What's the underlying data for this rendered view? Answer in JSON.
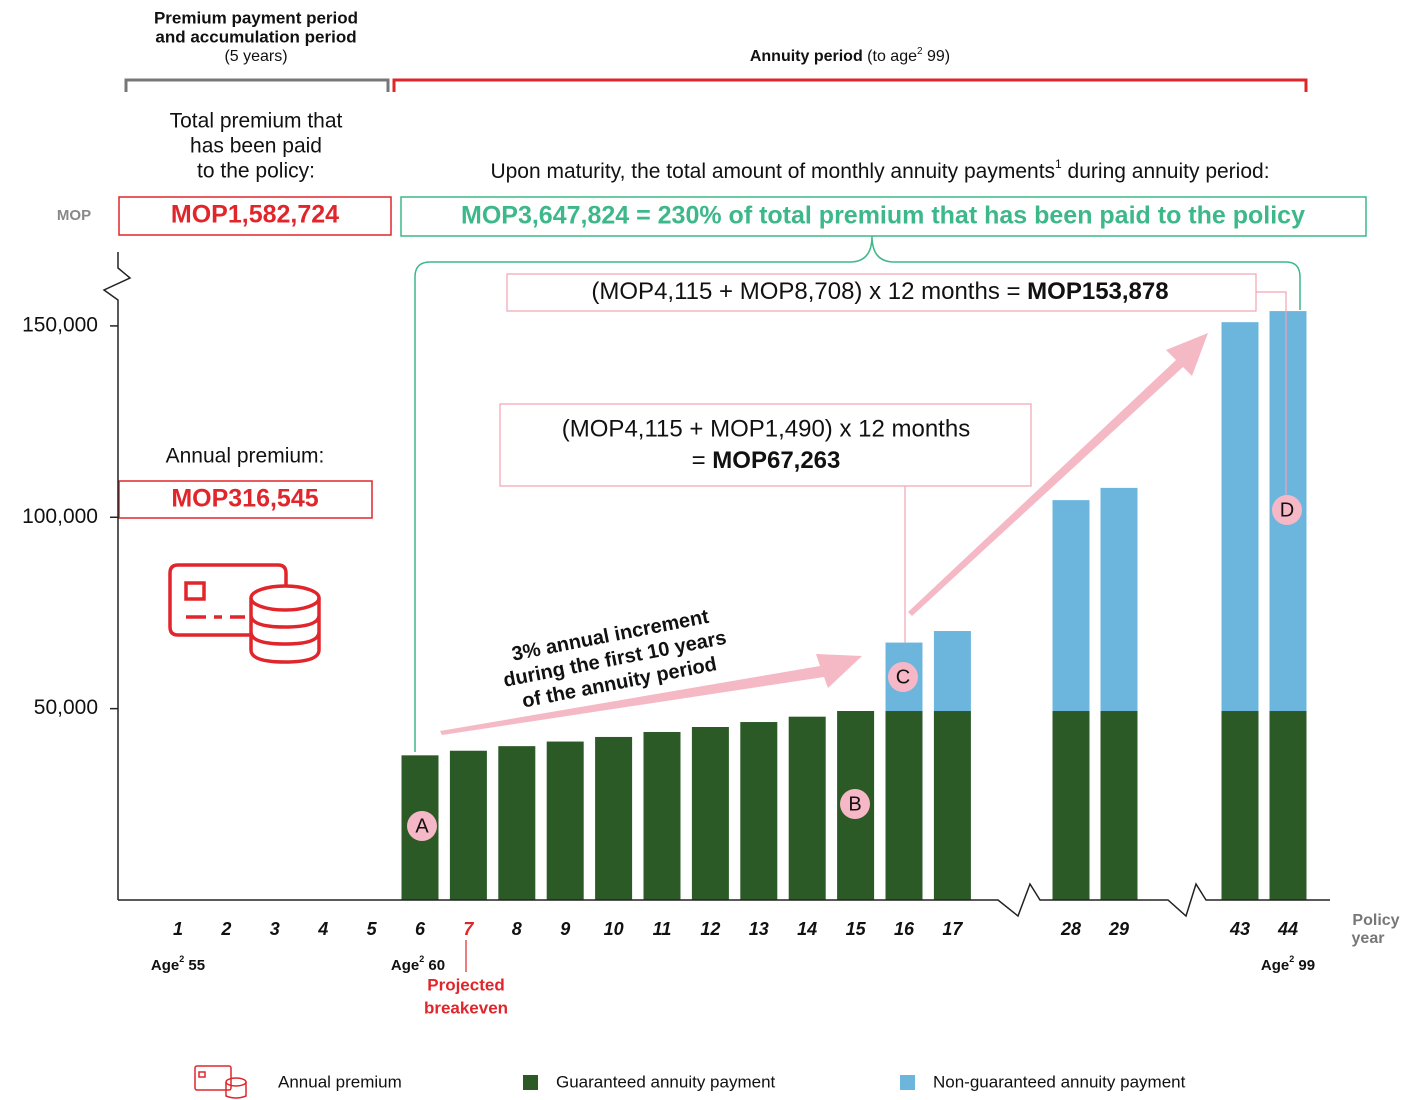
{
  "chart_data": {
    "type": "bar",
    "stacked": true,
    "header": {
      "left_title": [
        "Premium payment period",
        "and accumulation period"
      ],
      "left_sub": "(5 years)",
      "right_title": "Annuity period",
      "right_pre": " (to age",
      "right_sup": "2",
      "right_post": " 99)"
    },
    "unit": "MOP",
    "total_premium": {
      "label": [
        "Total premium that",
        "has been paid",
        "to the policy:"
      ],
      "value": "MOP1,582,724"
    },
    "total_annuity": {
      "pre": "Upon maturity, the total amount of monthly annuity payments",
      "sup": "1",
      "post": " during annuity period:",
      "value": "MOP3,647,824 = 230% of total premium that has been paid to the policy"
    },
    "annual_premium": {
      "label": "Annual premium:",
      "value": "MOP316,545"
    },
    "callouts": [
      {
        "line1": "(MOP4,115 + MOP1,490) x 12 months",
        "pre": "= ",
        "bold": "MOP67,263"
      },
      {
        "line1": "(MOP4,115 + MOP8,708) x 12 months = ",
        "bold": "MOP153,878"
      }
    ],
    "increment": [
      "3% annual increment",
      "during the first 10 years",
      "of the annuity period"
    ],
    "markers": [
      "A",
      "B",
      "C",
      "D"
    ],
    "categories": [
      "1",
      "2",
      "3",
      "4",
      "5",
      "6",
      "7",
      "8",
      "9",
      "10",
      "11",
      "12",
      "13",
      "14",
      "15",
      "16",
      "17",
      "28",
      "29",
      "43",
      "44"
    ],
    "highlight_category": "7",
    "x_label": [
      "Policy",
      "year"
    ],
    "ages": [
      {
        "text": "Age",
        "sup": "2",
        "value": " 55"
      },
      {
        "text": "Age",
        "sup": "2",
        "value": " 60"
      },
      {
        "text": "Age",
        "sup": "2",
        "value": " 99"
      }
    ],
    "breakeven": [
      "Projected",
      "breakeven"
    ],
    "legend_icon_label": "Annual premium",
    "series": [
      {
        "name": "Guaranteed annuity payment",
        "color": "#2b5a27",
        "values": [
          null,
          null,
          null,
          null,
          null,
          37800,
          39000,
          40200,
          41400,
          42600,
          43900,
          45200,
          46500,
          47900,
          49380,
          49380,
          49380,
          49380,
          49380,
          49380,
          49380
        ]
      },
      {
        "name": "Non-guaranteed annuity payment",
        "color": "#6cb6dd",
        "values": [
          null,
          null,
          null,
          null,
          null,
          null,
          null,
          null,
          null,
          null,
          null,
          null,
          null,
          null,
          null,
          17880,
          20900,
          55100,
          58300,
          101600,
          104496
        ]
      }
    ],
    "ylim": [
      0,
      165000
    ],
    "yticks": [
      {
        "value": 50000,
        "label": "50,000"
      },
      {
        "value": 100000,
        "label": "100,000"
      },
      {
        "value": 150000,
        "label": "150,000"
      }
    ]
  }
}
